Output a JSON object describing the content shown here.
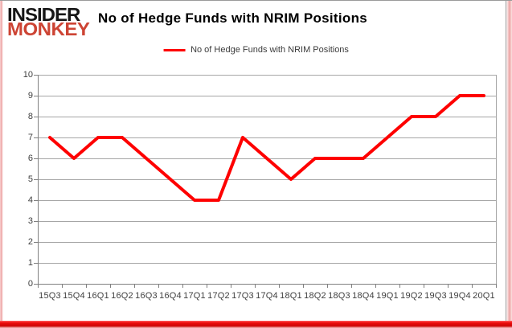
{
  "logo": {
    "line1": "INSIDER",
    "line2": "MONKEY"
  },
  "header": {
    "title": "No of Hedge Funds with NRIM Positions"
  },
  "legend": {
    "label": "No of Hedge Funds with NRIM Positions"
  },
  "colors": {
    "line": "#fe0000",
    "grid": "#a6a6a6",
    "axis": "#808080",
    "tick_text": "#3f3f3f",
    "title_text": "#000000",
    "logo_red": "#cd4434",
    "frame_red": "#ec0b0b",
    "frame_pink": "#eda4a4",
    "border_gray": "#9a9a9a"
  },
  "chart_data": {
    "type": "line",
    "title": "No of Hedge Funds with NRIM Positions",
    "xlabel": "",
    "ylabel": "",
    "categories": [
      "15Q3",
      "15Q4",
      "16Q1",
      "16Q2",
      "16Q3",
      "16Q4",
      "17Q1",
      "17Q2",
      "17Q3",
      "17Q4",
      "18Q1",
      "18Q2",
      "18Q3",
      "18Q4",
      "19Q1",
      "19Q2",
      "19Q3",
      "19Q4",
      "20Q1"
    ],
    "series": [
      {
        "name": "No of Hedge Funds with NRIM Positions",
        "color": "#fe0000",
        "values": [
          7,
          6,
          7,
          7,
          6,
          5,
          4,
          4,
          7,
          6,
          5,
          6,
          6,
          6,
          7,
          8,
          8,
          9,
          9
        ]
      }
    ],
    "ylim": [
      0,
      10
    ],
    "ytick_step": 1,
    "grid": "horizontal",
    "legend_position": "top-center"
  }
}
